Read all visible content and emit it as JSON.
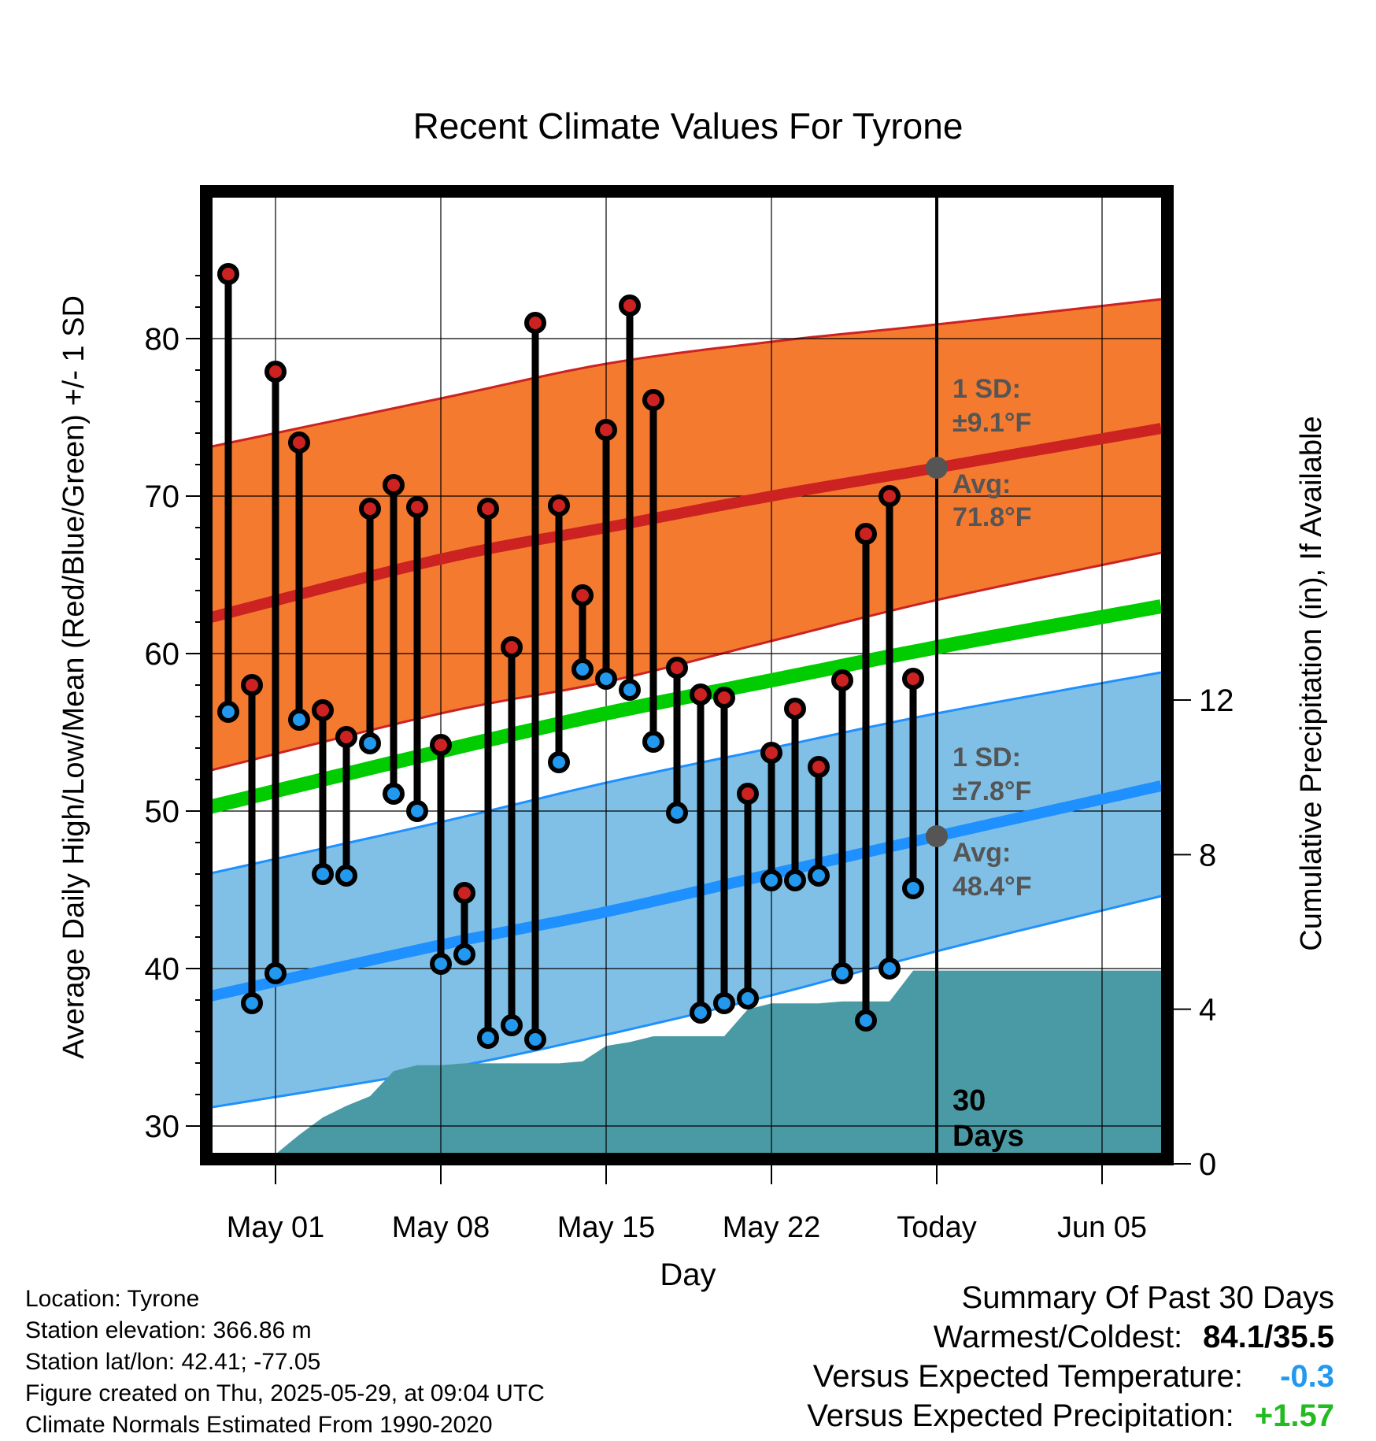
{
  "title": "Recent Climate Values For Tyrone",
  "xlabel": "Day",
  "ylabel_left": "Average Daily High/Low/Mean (Red/Blue/Green) +/- 1 SD",
  "ylabel_right": "Cumulative Precipitation (in), If Available",
  "colors": {
    "high_band": "#f47a30",
    "high_avg": "#cc2222",
    "low_band": "#80c0e6",
    "low_avg": "#1e90ff",
    "mean": "#00cc00",
    "precip": "#4a9aa5",
    "high_dot": "#cc2222",
    "low_dot": "#2299ee",
    "annotation": "#555555",
    "summary_temp": "#2299ee",
    "summary_precip": "#22bb22"
  },
  "annotations": {
    "high_sd": "1 SD:",
    "high_sd_value": "±9.1°F",
    "high_avg": "Avg:",
    "high_avg_value": "71.8°F",
    "low_sd": "1 SD:",
    "low_sd_value": "±7.8°F",
    "low_avg": "Avg:",
    "low_avg_value": "48.4°F",
    "days_num": "30",
    "days_label": "Days"
  },
  "footer": {
    "location": "Location: Tyrone",
    "elevation": "Station elevation: 366.86 m",
    "latlon": "Station lat/lon: 42.41; -77.05",
    "created": "Figure created on Thu, 2025-05-29, at 09:04 UTC",
    "normals": "Climate Normals Estimated From 1990-2020"
  },
  "summary": {
    "title": "Summary Of Past 30 Days",
    "warm_cold_label": "Warmest/Coldest:",
    "warm_cold_value": "84.1/35.5",
    "temp_label": "Versus Expected Temperature:",
    "temp_value": "-0.3",
    "precip_label": "Versus Expected Precipitation:",
    "precip_value": "+1.57"
  },
  "chart_data": {
    "type": "line",
    "x_unit": "day offset, 0 = Today (2025-05-29)",
    "x_range": [
      -31.5,
      9.5
    ],
    "ylim": [
      28,
      90
    ],
    "y_ticks": [
      30,
      40,
      50,
      60,
      70,
      80
    ],
    "y2lim": [
      0,
      20
    ],
    "y2_ticks": [
      0,
      4,
      8,
      12
    ],
    "x_ticks": [
      {
        "x": -28,
        "label": "May 01"
      },
      {
        "x": -21,
        "label": "May 08"
      },
      {
        "x": -14,
        "label": "May 15"
      },
      {
        "x": -7,
        "label": "May 22"
      },
      {
        "x": 0,
        "label": "Today"
      },
      {
        "x": 7,
        "label": "Jun 05"
      }
    ],
    "normals": {
      "x": [
        -31.5,
        -21,
        -14,
        -7,
        0,
        9.5
      ],
      "high_avg": [
        62.0,
        66.0,
        68.0,
        70.0,
        71.8,
        74.3
      ],
      "high_upper": [
        72.9,
        76.2,
        78.4,
        79.8,
        80.9,
        82.5
      ],
      "high_lower": [
        52.3,
        56.2,
        58.2,
        60.8,
        63.4,
        66.4
      ],
      "mean": [
        50.0,
        53.8,
        56.2,
        58.3,
        60.4,
        63.0
      ],
      "low_avg": [
        38.0,
        41.5,
        43.6,
        46.0,
        48.4,
        51.6
      ],
      "low_upper": [
        45.8,
        49.3,
        51.8,
        54.0,
        56.2,
        58.8
      ],
      "low_lower": [
        31.0,
        33.6,
        35.8,
        38.3,
        41.1,
        44.6
      ]
    },
    "daily": {
      "x": [
        -30,
        -29,
        -28,
        -27,
        -26,
        -25,
        -24,
        -23,
        -22,
        -21,
        -20,
        -19,
        -18,
        -17,
        -16,
        -15,
        -14,
        -13,
        -12,
        -11,
        -10,
        -9,
        -8,
        -7,
        -6,
        -5,
        -4,
        -3,
        -2,
        -1
      ],
      "high": [
        84.1,
        58.0,
        77.9,
        73.4,
        56.4,
        54.7,
        69.2,
        70.7,
        69.3,
        54.2,
        44.8,
        69.2,
        60.4,
        81.0,
        69.4,
        63.7,
        74.2,
        82.1,
        76.1,
        59.1,
        57.4,
        57.2,
        51.1,
        53.7,
        56.5,
        52.8,
        58.3,
        67.6,
        70.0,
        58.4
      ],
      "low": [
        56.3,
        37.8,
        39.7,
        55.8,
        46.0,
        45.9,
        54.3,
        51.1,
        50.0,
        40.3,
        40.9,
        35.6,
        36.4,
        35.5,
        53.1,
        59.0,
        58.4,
        57.7,
        54.4,
        49.9,
        37.2,
        37.8,
        38.1,
        45.6,
        45.6,
        45.9,
        39.7,
        36.7,
        40.0,
        45.1
      ]
    },
    "precip": {
      "x": [
        -31.5,
        -30.5,
        -29.5,
        -28,
        -27,
        -26,
        -25,
        -24,
        -23,
        -22,
        -21,
        -20,
        -19,
        -18,
        -17,
        -16,
        -15,
        -14,
        -13,
        -12,
        -11,
        -10,
        -9,
        -8,
        -7,
        -6,
        -5,
        -4,
        -3,
        -2,
        -1,
        0,
        9.5
      ],
      "values": [
        0,
        0.25,
        0.25,
        0.25,
        0.75,
        1.2,
        1.5,
        1.75,
        2.4,
        2.55,
        2.55,
        2.6,
        2.6,
        2.6,
        2.6,
        2.6,
        2.65,
        3.05,
        3.15,
        3.3,
        3.3,
        3.3,
        3.3,
        4.0,
        4.15,
        4.15,
        4.15,
        4.2,
        4.2,
        4.2,
        5.0,
        5.0,
        5.0
      ]
    },
    "markers": [
      {
        "x": 0,
        "y": 71.8
      },
      {
        "x": 0,
        "y": 48.4
      }
    ]
  }
}
